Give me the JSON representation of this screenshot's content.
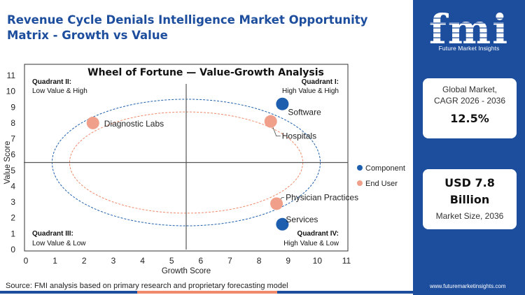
{
  "header": {
    "title": "Revenue Cycle Denials Intelligence Market Opportunity Matrix - Growth vs Value"
  },
  "brand": {
    "logo_letters": "fmi",
    "logo_caption": "Future Market Insights",
    "website": "www.futuremarketinsights.com",
    "color_primary": "#1d4e9e",
    "color_accent": "#f08a6a"
  },
  "stats": {
    "cagr_label_line1": "Global Market,",
    "cagr_label_line2": "CAGR 2026 - 2036",
    "cagr_value": "12.5%",
    "size_value_line1": "USD 7.8",
    "size_value_line2": "Billion",
    "size_label": "Market Size, 2036"
  },
  "footer": {
    "source": "Source: FMI analysis based on primary research and proprietary forecasting model"
  },
  "chart_data": {
    "type": "scatter",
    "title": "Wheel of Fortune — Value-Growth  Analysis",
    "xlabel": "Growth Score",
    "ylabel": "Value Score",
    "xlim": [
      0,
      11
    ],
    "ylim": [
      0,
      11
    ],
    "xticks": [
      0,
      1,
      2,
      3,
      4,
      5,
      6,
      7,
      8,
      9,
      10,
      11
    ],
    "yticks": [
      0,
      1,
      2,
      3,
      4,
      5,
      6,
      7,
      8,
      9,
      10,
      11
    ],
    "quadrant_divider": {
      "x": 5.5,
      "y": 5.5
    },
    "quadrants": [
      {
        "name": "Quadrant II:",
        "desc": "Low Value & High",
        "position": "top-left"
      },
      {
        "name": "Quadrant I:",
        "desc": "High Value & High",
        "position": "top-right"
      },
      {
        "name": "Quadrant III:",
        "desc": "Low Value & Low",
        "position": "bottom-left"
      },
      {
        "name": "Quadrant IV:",
        "desc": "High Value & Low",
        "position": "bottom-right"
      }
    ],
    "legend_position": "right",
    "series": [
      {
        "name": "Component",
        "color": "#1d5fae",
        "points": [
          {
            "label": "Software",
            "x": 8.8,
            "y": 9.2
          },
          {
            "label": "Services",
            "x": 8.8,
            "y": 1.6
          }
        ]
      },
      {
        "name": "End User",
        "color": "#f0a08a",
        "points": [
          {
            "label": "Diagnostic Labs",
            "x": 2.3,
            "y": 8.0
          },
          {
            "label": "Hospitals",
            "x": 8.4,
            "y": 8.1
          },
          {
            "label": "Physician Practices",
            "x": 8.6,
            "y": 2.9
          }
        ]
      }
    ]
  }
}
